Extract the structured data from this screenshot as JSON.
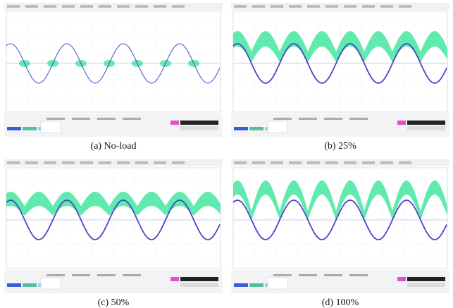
{
  "panels": [
    {
      "caption": "(a) No-load"
    },
    {
      "caption": "(b) 25%"
    },
    {
      "caption": "(c) 50%"
    },
    {
      "caption": "(d) 100%"
    }
  ]
}
